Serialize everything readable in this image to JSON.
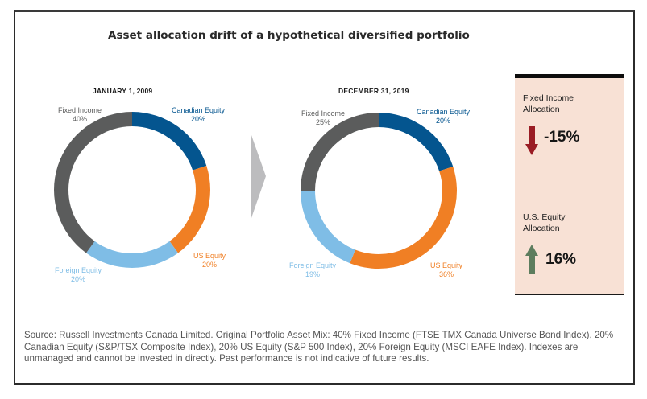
{
  "title": "Asset allocation drift of a hypothetical diversified portfolio",
  "colors": {
    "fixed_income": "#5b5c5c",
    "canadian_equity": "#04558f",
    "us_equity": "#f07f24",
    "foreign_equity": "#7fbde6",
    "arrow_chevron": "#bcbcbe",
    "down_arrow": "#9a1c24",
    "up_arrow": "#5d7d5e",
    "panel_bg": "#f8e1d5"
  },
  "chart_data": [
    {
      "type": "pie",
      "variant": "donut",
      "title": "JANUARY 1, 2009",
      "categories": [
        "Canadian Equity",
        "US Equity",
        "Foreign Equity",
        "Fixed Income"
      ],
      "values": [
        20,
        20,
        20,
        40
      ],
      "labels": [
        "20%",
        "20%",
        "20%",
        "40%"
      ],
      "start_angle": "top",
      "direction": "clockwise"
    },
    {
      "type": "pie",
      "variant": "donut",
      "title": "DECEMBER 31, 2019",
      "categories": [
        "Canadian Equity",
        "US Equity",
        "Foreign Equity",
        "Fixed Income"
      ],
      "values": [
        20,
        36,
        19,
        25
      ],
      "labels": [
        "20%",
        "36%",
        "19%",
        "25%"
      ],
      "start_angle": "top",
      "direction": "clockwise"
    }
  ],
  "panel": {
    "items": [
      {
        "label_line1": "Fixed Income",
        "label_line2": "Allocation",
        "direction": "down",
        "value": "-15%"
      },
      {
        "label_line1": "U.S. Equity",
        "label_line2": "Allocation",
        "direction": "up",
        "value": "16%"
      }
    ]
  },
  "footnote": "Source: Russell Investments Canada Limited. Original Portfolio Asset Mix: 40% Fixed Income (FTSE TMX Canada Universe Bond Index), 20% Canadian Equity (S&P/TSX Composite Index), 20% US Equity (S&P 500 Index), 20% Foreign Equity (MSCI EAFE Index). Indexes are unmanaged and cannot be invested in directly. Past performance is not indicative of future results."
}
